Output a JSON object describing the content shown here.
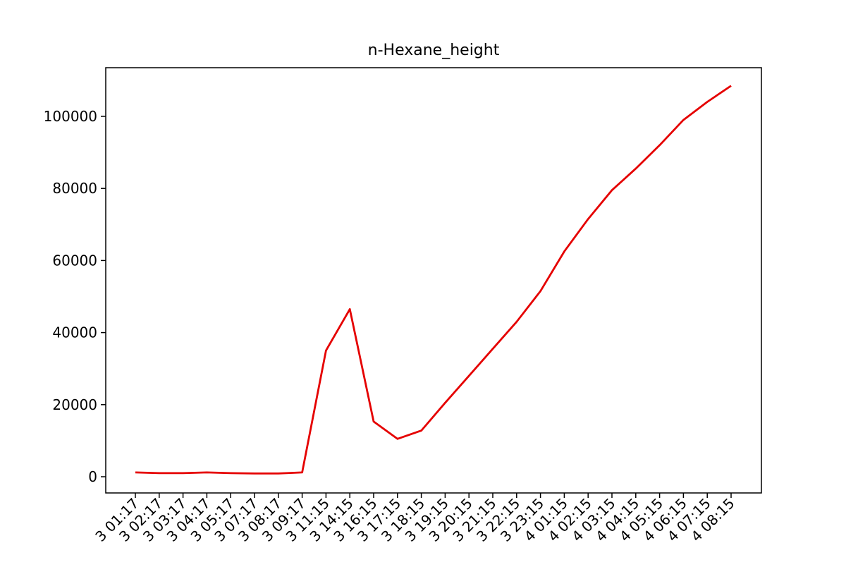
{
  "chart_data": {
    "type": "line",
    "title": "n-Hexane_height",
    "xlabel": "",
    "ylabel": "",
    "x": [
      "3 01:17",
      "3 02:17",
      "3 03:17",
      "3 04:17",
      "3 05:17",
      "3 07:17",
      "3 08:17",
      "3 09:17",
      "3 11:15",
      "3 14:15",
      "3 16:15",
      "3 17:15",
      "3 18:15",
      "3 19:15",
      "3 20:15",
      "3 21:15",
      "3 22:15",
      "3 23:15",
      "4 01:15",
      "4 02:15",
      "4 03:15",
      "4 04:15",
      "4 05:15",
      "4 06:15",
      "4 07:15",
      "4 08:15"
    ],
    "series": [
      {
        "color": "#e50000",
        "values": [
          1200,
          1000,
          1000,
          1200,
          1000,
          900,
          900,
          1200,
          35000,
          46500,
          15300,
          10500,
          12800,
          20500,
          28000,
          35500,
          43000,
          51500,
          62500,
          71500,
          79500,
          85500,
          92000,
          99000,
          104000,
          108500
        ]
      }
    ],
    "yticks": [
      0,
      20000,
      40000,
      60000,
      80000,
      100000
    ],
    "ytick_labels": [
      "0",
      "20000",
      "40000",
      "60000",
      "80000",
      "100000"
    ],
    "ylim": [
      -4500,
      113500
    ],
    "grid": false,
    "legend": "none"
  }
}
